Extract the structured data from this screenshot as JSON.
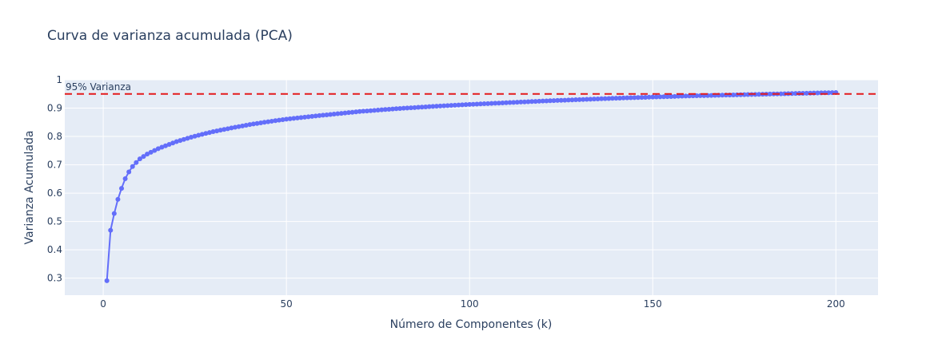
{
  "chart_data": {
    "type": "line",
    "title": "Curva de varianza acumulada (PCA)",
    "xlabel": "Número de Componentes (k)",
    "ylabel": "Varianza Acumulada",
    "xlim": [
      -10.5,
      211.5
    ],
    "ylim": [
      0.24,
      1.0
    ],
    "x_ticks": [
      0,
      50,
      100,
      150,
      200
    ],
    "y_ticks": [
      0.3,
      0.4,
      0.5,
      0.6,
      0.7,
      0.8,
      0.9,
      1
    ],
    "grid": true,
    "series": [
      {
        "marker": "circle",
        "color": "#636efa",
        "x_start": 1,
        "x_end": 200,
        "anchors": [
          [
            1,
            0.291
          ],
          [
            2,
            0.469
          ],
          [
            3,
            0.528
          ],
          [
            4,
            0.578
          ],
          [
            5,
            0.617
          ],
          [
            6,
            0.651
          ],
          [
            7,
            0.675
          ],
          [
            8,
            0.694
          ],
          [
            9,
            0.708
          ],
          [
            10,
            0.721
          ],
          [
            12,
            0.738
          ],
          [
            15,
            0.757
          ],
          [
            20,
            0.782
          ],
          [
            25,
            0.801
          ],
          [
            30,
            0.817
          ],
          [
            35,
            0.83
          ],
          [
            40,
            0.842
          ],
          [
            45,
            0.852
          ],
          [
            50,
            0.861
          ],
          [
            60,
            0.875
          ],
          [
            70,
            0.888
          ],
          [
            80,
            0.898
          ],
          [
            90,
            0.906
          ],
          [
            100,
            0.913
          ],
          [
            110,
            0.919
          ],
          [
            120,
            0.925
          ],
          [
            130,
            0.93
          ],
          [
            140,
            0.935
          ],
          [
            150,
            0.939
          ],
          [
            160,
            0.943
          ],
          [
            170,
            0.946
          ],
          [
            180,
            0.949
          ],
          [
            190,
            0.952
          ],
          [
            200,
            0.955
          ]
        ]
      }
    ],
    "reference_line": {
      "y": 0.95,
      "label": "95% Varianza",
      "color": "#e41a1c",
      "style": "dashed"
    }
  }
}
